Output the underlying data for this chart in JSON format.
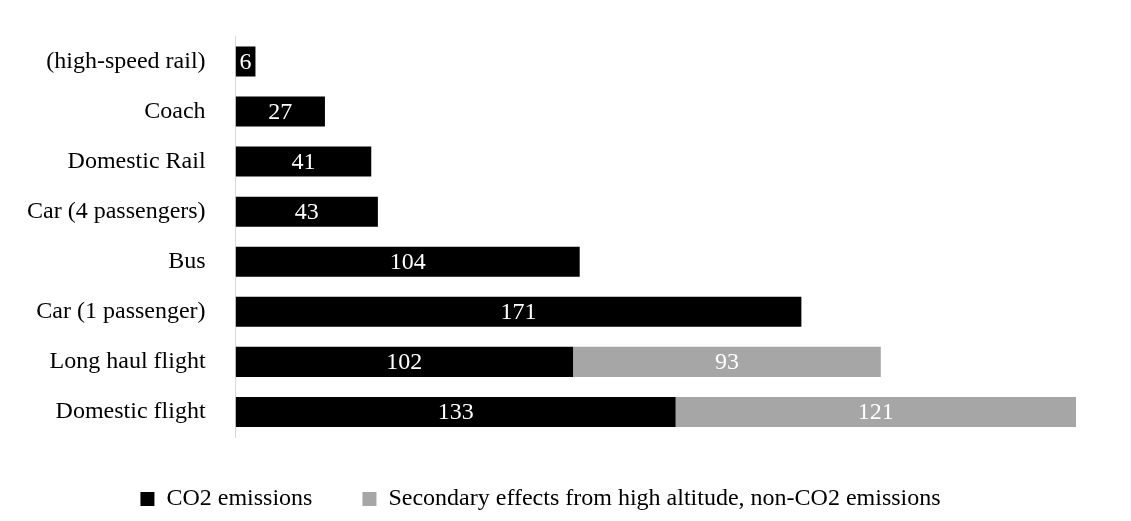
{
  "chart_data": {
    "type": "bar",
    "orientation": "horizontal",
    "stacked": true,
    "data_labels": true,
    "legend": "bottom",
    "tick_labels": "y",
    "categories": [
      "(high-speed rail)",
      "Coach",
      "Domestic Rail",
      "Car (4 passengers)",
      "Bus",
      "Car (1 passenger)",
      "Long haul flight",
      "Domestic flight"
    ],
    "series": [
      {
        "name": "CO2 emissions",
        "color": "#000000",
        "values": [
          6,
          27,
          41,
          43,
          104,
          171,
          102,
          133
        ]
      },
      {
        "name": "Secondary effects from high altitude, non-CO2 emissions",
        "color": "#a6a6a6",
        "values": [
          null,
          null,
          null,
          null,
          null,
          null,
          93,
          121
        ]
      }
    ]
  }
}
